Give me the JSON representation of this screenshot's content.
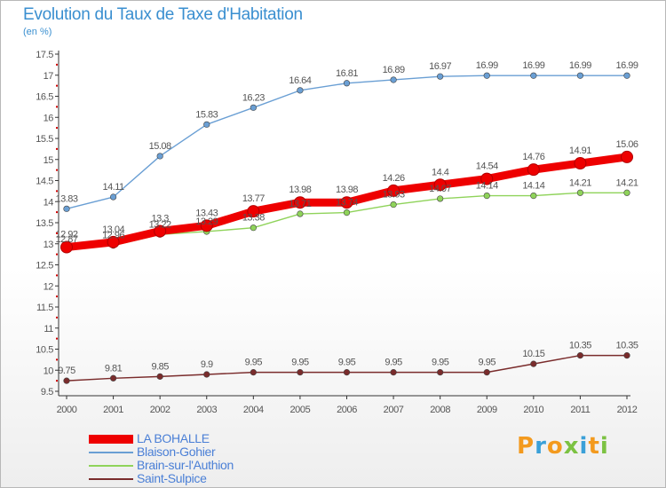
{
  "title": "Evolution du Taux de Taxe d'Habitation",
  "subtitle": "(en %)",
  "logo": {
    "letters": [
      "P",
      "r",
      "o",
      "x",
      "i",
      "t",
      "i"
    ],
    "colors": [
      "#f39a1e",
      "#3aa0d8",
      "#f39a1e",
      "#7cc242",
      "#3aa0d8",
      "#f39a1e",
      "#7cc242"
    ]
  },
  "chart_data": {
    "type": "line",
    "x": [
      "2000",
      "2001",
      "2002",
      "2003",
      "2004",
      "2005",
      "2006",
      "2007",
      "2008",
      "2009",
      "2010",
      "2011",
      "2012"
    ],
    "ylim": [
      9.5,
      17.5
    ],
    "yticks": [
      "9.5",
      "10",
      "10.5",
      "11",
      "11.5",
      "12",
      "12.5",
      "13",
      "13.5",
      "14",
      "14.5",
      "15",
      "15.5",
      "16",
      "16.5",
      "17",
      "17.5"
    ],
    "grid": false,
    "legend_position": "bottom-left",
    "series": [
      {
        "name": "LA BOHALLE",
        "color": "#ee0000",
        "values": [
          12.92,
          13.04,
          13.3,
          13.43,
          13.77,
          13.98,
          13.98,
          14.26,
          14.4,
          14.54,
          14.76,
          14.91,
          15.06
        ],
        "labels": [
          "12.92",
          "13.04",
          "13.3",
          "13.43",
          "13.77",
          "13.98",
          "13.98",
          "14.26",
          "14.4",
          "14.54",
          "14.76",
          "14.91",
          "15.06"
        ]
      },
      {
        "name": "Blaison-Gohier",
        "color": "#6a9fd4",
        "values": [
          13.83,
          14.11,
          15.08,
          15.83,
          16.23,
          16.64,
          16.81,
          16.89,
          16.97,
          16.99,
          16.99,
          16.99,
          16.99
        ],
        "labels": [
          "13.83",
          "14.11",
          "15.08",
          "15.83",
          "16.23",
          "16.64",
          "16.81",
          "16.89",
          "16.97",
          "16.99",
          "16.99",
          "16.99",
          "16.99"
        ]
      },
      {
        "name": "Brain-sur-l'Authion",
        "color": "#8fd35a",
        "values": [
          12.87,
          12.96,
          13.22,
          13.29,
          13.38,
          13.71,
          13.74,
          13.93,
          14.07,
          14.14,
          14.14,
          14.21,
          14.21
        ],
        "labels": [
          "12.87",
          "12.96",
          "13.22",
          "13.29",
          "13.38",
          "13.71",
          "13.74",
          "13.93",
          "14.07",
          "14.14",
          "14.14",
          "14.21",
          "14.21"
        ]
      },
      {
        "name": "Saint-Sulpice",
        "color": "#7a2c2c",
        "values": [
          9.75,
          9.81,
          9.85,
          9.9,
          9.95,
          9.95,
          9.95,
          9.95,
          9.95,
          9.95,
          10.15,
          10.35,
          10.35
        ],
        "labels": [
          "9.75",
          "9.81",
          "9.85",
          "9.9",
          "9.95",
          "9.95",
          "9.95",
          "9.95",
          "9.95",
          "9.95",
          "10.15",
          "10.35",
          "10.35"
        ]
      }
    ]
  }
}
